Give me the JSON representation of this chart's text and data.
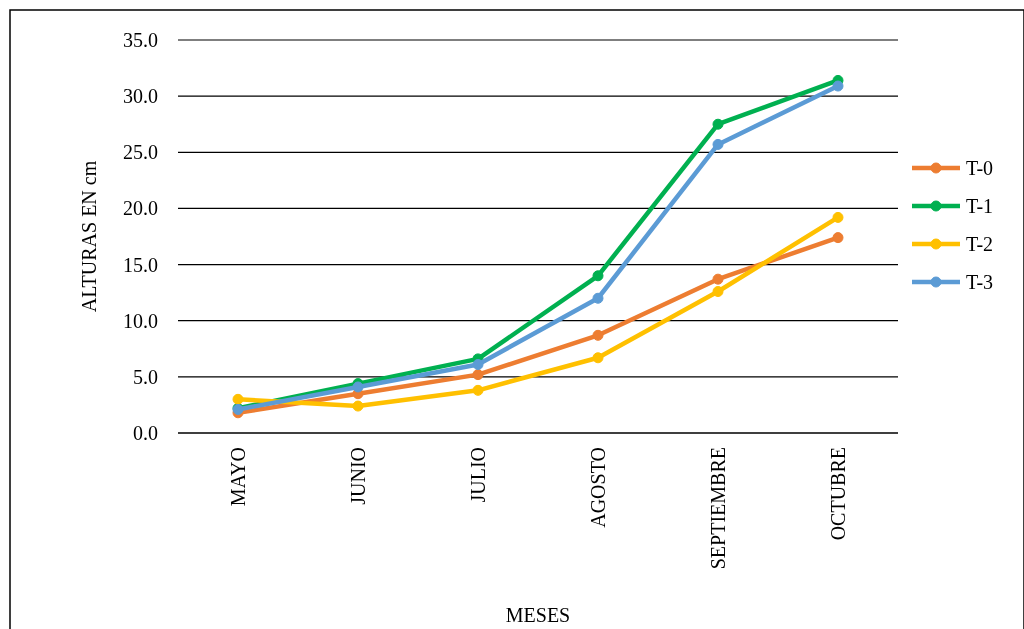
{
  "chart_data": {
    "type": "line",
    "xlabel": "MESES",
    "ylabel": "ALTURAS EN cm",
    "categories": [
      "MAYO",
      "JUNIO",
      "JULIO",
      "AGOSTO",
      "SEPTIEMBRE",
      "OCTUBRE"
    ],
    "series": [
      {
        "name": "T-0",
        "color": "#ed7d31",
        "values": [
          1.8,
          3.5,
          5.2,
          8.7,
          13.7,
          17.4
        ]
      },
      {
        "name": "T-1",
        "color": "#00b050",
        "values": [
          2.2,
          4.4,
          6.6,
          14.0,
          27.5,
          31.4
        ]
      },
      {
        "name": "T-2",
        "color": "#ffc000",
        "values": [
          3.0,
          2.4,
          3.8,
          6.7,
          12.6,
          19.2
        ]
      },
      {
        "name": "T-3",
        "color": "#5b9bd5",
        "values": [
          2.1,
          4.1,
          6.1,
          12.0,
          25.7,
          30.9
        ]
      }
    ],
    "ylim": [
      0,
      35
    ],
    "yticks": [
      {
        "value": 0,
        "label": "0.0"
      },
      {
        "value": 5,
        "label": "5.0"
      },
      {
        "value": 10,
        "label": "10.0"
      },
      {
        "value": 15,
        "label": "15.0"
      },
      {
        "value": 20,
        "label": "20.0"
      },
      {
        "value": 25,
        "label": "25.0"
      },
      {
        "value": 30,
        "label": "30.0"
      },
      {
        "value": 35,
        "label": "35.0"
      }
    ],
    "grid": "y",
    "legend": "right",
    "marker": "circle",
    "line_style": "solid"
  }
}
